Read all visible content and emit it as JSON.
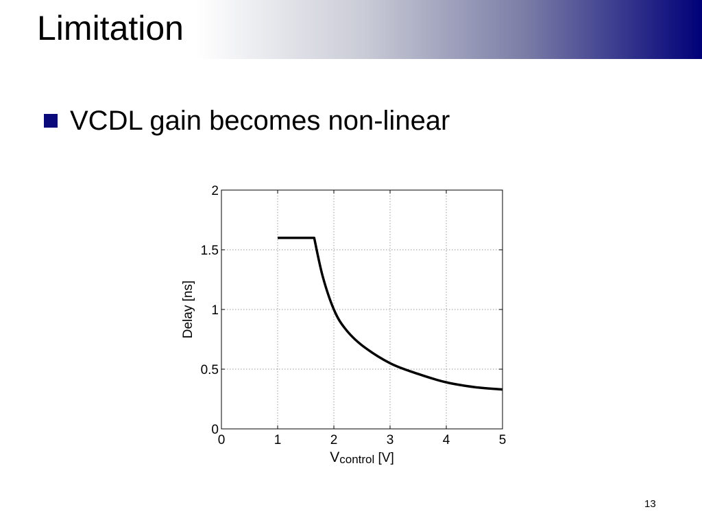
{
  "slide": {
    "title": "Limitation",
    "bullet": "VCDL gain becomes non-linear",
    "page_number": "13",
    "colors": {
      "bullet": "#0a0a7a",
      "title_gradient_end": "#000078"
    },
    "icons": {
      "bullet": "square-bullet-icon"
    }
  },
  "chart_data": {
    "type": "line",
    "title": "",
    "xlabel_main": "V",
    "xlabel_sub": "control",
    "xlabel_unit": " [V]",
    "ylabel": "Delay [ns]",
    "xlim": [
      0,
      5
    ],
    "ylim": [
      0,
      2
    ],
    "xticks": [
      "0",
      "1",
      "2",
      "3",
      "4",
      "5"
    ],
    "yticks": [
      "0",
      "0.5",
      "1",
      "1.5",
      "2"
    ],
    "grid": true,
    "series": [
      {
        "x": [
          1.0,
          1.65,
          1.8,
          2.0,
          2.2,
          2.5,
          3.0,
          3.5,
          4.0,
          4.5,
          5.0
        ],
        "y": [
          1.6,
          1.6,
          1.28,
          1.0,
          0.84,
          0.7,
          0.55,
          0.46,
          0.39,
          0.35,
          0.33
        ]
      }
    ]
  }
}
